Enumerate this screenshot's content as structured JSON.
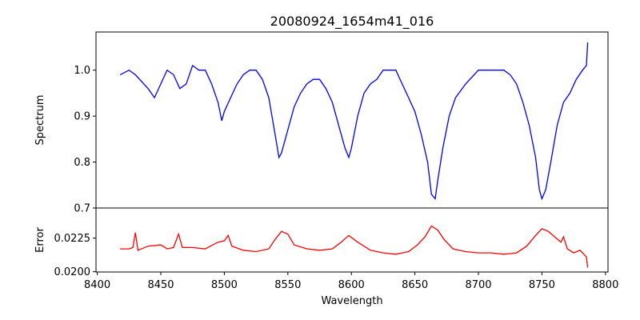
{
  "chart_data": [
    {
      "type": "line",
      "title": "20080924_1654m41_016",
      "xlabel": "",
      "ylabel": "Spectrum",
      "xlim": [
        8399,
        8802
      ],
      "ylim": [
        0.7,
        1.083
      ],
      "yticks": [
        "0.7",
        "0.8",
        "0.9",
        "1.0"
      ],
      "ytick_values": [
        0.7,
        0.8,
        0.9,
        1.0
      ],
      "color": "#0000ff",
      "x": [
        8418,
        8425,
        8430,
        8440,
        8445,
        8450,
        8455,
        8460,
        8465,
        8470,
        8475,
        8480,
        8485,
        8490,
        8495,
        8498,
        8500,
        8505,
        8510,
        8515,
        8520,
        8525,
        8530,
        8535,
        8540,
        8543,
        8545,
        8550,
        8555,
        8560,
        8565,
        8570,
        8575,
        8580,
        8585,
        8590,
        8595,
        8598,
        8600,
        8605,
        8610,
        8615,
        8620,
        8625,
        8630,
        8635,
        8640,
        8645,
        8650,
        8655,
        8660,
        8663,
        8666,
        8668,
        8672,
        8677,
        8682,
        8690,
        8700,
        8710,
        8720,
        8725,
        8730,
        8735,
        8740,
        8745,
        8748,
        8750,
        8753,
        8757,
        8762,
        8767,
        8772,
        8777,
        8782,
        8785,
        8786
      ],
      "y": [
        0.99,
        1.0,
        0.99,
        0.96,
        0.94,
        0.97,
        1.0,
        0.99,
        0.96,
        0.97,
        1.01,
        1.0,
        1.0,
        0.97,
        0.93,
        0.89,
        0.91,
        0.94,
        0.97,
        0.99,
        1.0,
        1.0,
        0.98,
        0.94,
        0.86,
        0.81,
        0.82,
        0.87,
        0.92,
        0.95,
        0.97,
        0.98,
        0.98,
        0.96,
        0.93,
        0.88,
        0.83,
        0.81,
        0.83,
        0.9,
        0.95,
        0.97,
        0.98,
        1.0,
        1.0,
        1.0,
        0.97,
        0.94,
        0.91,
        0.86,
        0.8,
        0.73,
        0.72,
        0.76,
        0.83,
        0.9,
        0.94,
        0.97,
        1.0,
        1.0,
        1.0,
        0.99,
        0.97,
        0.93,
        0.88,
        0.81,
        0.74,
        0.72,
        0.74,
        0.8,
        0.88,
        0.93,
        0.95,
        0.98,
        1.0,
        1.01,
        1.06
      ]
    },
    {
      "type": "line",
      "xlabel": "Wavelength",
      "ylabel": "Error",
      "xlim": [
        8399,
        8802
      ],
      "ylim": [
        0.01998,
        0.02474
      ],
      "yticks": [
        "0.0200",
        "0.0225"
      ],
      "ytick_values": [
        0.02,
        0.0225
      ],
      "color": "#ff0000",
      "xticks": [
        "8400",
        "8450",
        "8500",
        "8550",
        "8600",
        "8650",
        "8700",
        "8750",
        "8800"
      ],
      "xtick_values": [
        8400,
        8450,
        8500,
        8550,
        8600,
        8650,
        8700,
        8750,
        8800
      ],
      "x": [
        8418,
        8425,
        8428,
        8430,
        8432,
        8440,
        8450,
        8455,
        8460,
        8464,
        8467,
        8475,
        8485,
        8495,
        8500,
        8503,
        8506,
        8515,
        8525,
        8535,
        8540,
        8545,
        8550,
        8555,
        8565,
        8575,
        8585,
        8592,
        8598,
        8605,
        8615,
        8625,
        8635,
        8645,
        8652,
        8658,
        8663,
        8668,
        8673,
        8680,
        8690,
        8700,
        8710,
        8720,
        8730,
        8738,
        8745,
        8750,
        8755,
        8760,
        8765,
        8767,
        8770,
        8775,
        8780,
        8785,
        8786
      ],
      "y": [
        0.0217,
        0.0217,
        0.0218,
        0.0229,
        0.0216,
        0.0219,
        0.022,
        0.0217,
        0.0218,
        0.0228,
        0.0218,
        0.0218,
        0.0217,
        0.0222,
        0.0223,
        0.0227,
        0.0219,
        0.0216,
        0.0215,
        0.0217,
        0.0224,
        0.023,
        0.0228,
        0.022,
        0.0217,
        0.0216,
        0.0217,
        0.0222,
        0.0227,
        0.0222,
        0.0216,
        0.0214,
        0.0213,
        0.0215,
        0.022,
        0.0226,
        0.0234,
        0.0231,
        0.0224,
        0.0217,
        0.0215,
        0.0214,
        0.0214,
        0.0213,
        0.0214,
        0.0219,
        0.0227,
        0.0232,
        0.023,
        0.0226,
        0.0222,
        0.0226,
        0.0217,
        0.0214,
        0.0216,
        0.0211,
        0.0203
      ]
    }
  ]
}
